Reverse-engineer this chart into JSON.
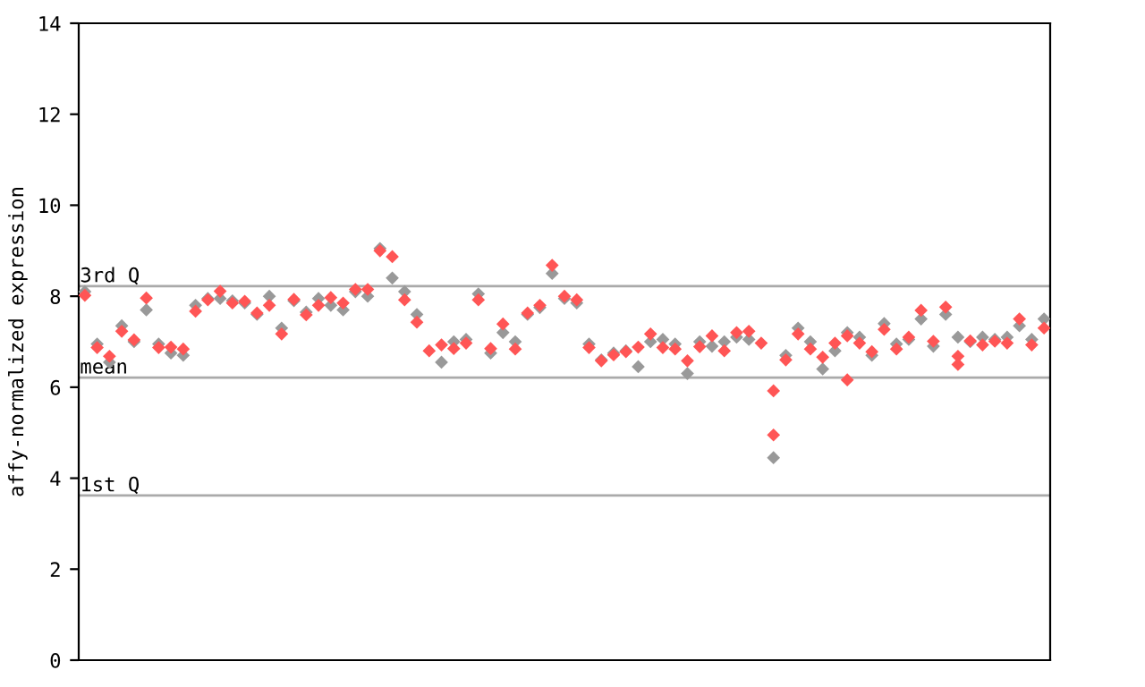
{
  "chart_data": {
    "type": "scatter",
    "ylabel": "affy-normalized expression",
    "categories": [
      null,
      null,
      null,
      null,
      null,
      null,
      null,
      null,
      null,
      null,
      null,
      null,
      null,
      null,
      null,
      null,
      null,
      null,
      null,
      null,
      null,
      null,
      null,
      null,
      null,
      null,
      null,
      null,
      null,
      null,
      null,
      null,
      null,
      null,
      null,
      null,
      null,
      null,
      null,
      null,
      null,
      null,
      null,
      null,
      null,
      null,
      null,
      null,
      null,
      null,
      null,
      null,
      null,
      null,
      null,
      null,
      null,
      null,
      null,
      null,
      null,
      null,
      null,
      null,
      null,
      null,
      null,
      null,
      null,
      null,
      null,
      null,
      null,
      null,
      null,
      null,
      null,
      null,
      null
    ],
    "series": [
      {
        "color": "#999999",
        "values": [
          8.1,
          6.95,
          6.55,
          7.35,
          7.0,
          7.7,
          6.95,
          6.75,
          6.7,
          7.8,
          7.95,
          7.95,
          7.9,
          7.85,
          7.6,
          8.0,
          7.3,
          7.9,
          7.65,
          7.95,
          7.8,
          7.7,
          8.1,
          8.0,
          9.05,
          8.4,
          8.1,
          7.6,
          null,
          6.55,
          7.0,
          7.05,
          8.05,
          6.75,
          7.2,
          7.0,
          7.6,
          7.75,
          8.5,
          7.95,
          7.85,
          6.95,
          6.6,
          6.75,
          6.8,
          6.45,
          7.0,
          7.05,
          6.95,
          6.3,
          7.0,
          6.9,
          7.0,
          7.1,
          7.05,
          null,
          4.45,
          6.7,
          7.3,
          7.0,
          6.4,
          6.8,
          7.2,
          7.1,
          6.7,
          7.4,
          6.95,
          7.05,
          7.5,
          6.9,
          7.6,
          7.1,
          7.0,
          7.1,
          7.05,
          7.1,
          7.35,
          7.05,
          7.5
        ]
      },
      {
        "color": "#ff5555",
        "values": [
          8.02,
          6.87,
          6.68,
          7.23,
          7.04,
          7.96,
          6.87,
          6.88,
          6.84,
          7.67,
          7.92,
          8.11,
          7.85,
          7.89,
          7.63,
          7.8,
          7.17,
          7.93,
          7.59,
          7.8,
          7.97,
          7.85,
          8.15,
          8.15,
          9.0,
          8.87,
          7.92,
          7.43,
          6.8,
          6.93,
          6.85,
          6.97,
          7.92,
          6.85,
          7.39,
          6.84,
          7.63,
          7.8,
          8.68,
          8.0,
          7.92,
          6.87,
          6.58,
          6.71,
          6.78,
          6.88,
          7.17,
          6.87,
          6.84,
          6.58,
          6.89,
          7.13,
          6.8,
          7.2,
          7.23,
          6.97,
          4.95,
          6.6,
          7.17,
          6.84,
          6.66,
          6.97,
          7.13,
          6.97,
          6.78,
          7.27,
          6.84,
          7.1,
          7.69,
          7.01,
          7.76,
          6.68,
          7.02,
          6.93,
          7.01,
          6.97,
          7.5,
          6.93,
          7.3
        ]
      },
      {
        "color": "#ff5555",
        "values": [
          null,
          null,
          null,
          null,
          null,
          null,
          null,
          null,
          null,
          null,
          null,
          null,
          null,
          null,
          null,
          null,
          null,
          null,
          null,
          null,
          null,
          null,
          null,
          null,
          null,
          null,
          null,
          null,
          null,
          null,
          null,
          null,
          null,
          null,
          null,
          null,
          null,
          null,
          null,
          null,
          null,
          null,
          null,
          null,
          null,
          null,
          null,
          null,
          null,
          null,
          null,
          null,
          null,
          null,
          null,
          null,
          5.92,
          null,
          null,
          null,
          null,
          null,
          6.16,
          null,
          null,
          null,
          null,
          null,
          null,
          null,
          null,
          6.5,
          null,
          null,
          null,
          null,
          null,
          null,
          null
        ]
      }
    ],
    "ylim": [
      0,
      14
    ],
    "yticks": [
      0,
      2,
      4,
      6,
      8,
      10,
      12,
      14
    ],
    "ref_lines": [
      {
        "axis": "y",
        "value": 8.22,
        "label": "3rd Q",
        "color": "#aaaaaa"
      },
      {
        "axis": "y",
        "value": 6.21,
        "label": "mean",
        "color": "#aaaaaa"
      },
      {
        "axis": "y",
        "value": 3.62,
        "label": "1st Q",
        "color": "#aaaaaa"
      }
    ],
    "marker": "diamond",
    "grid": false,
    "legend": false,
    "tick_labels": "y"
  }
}
